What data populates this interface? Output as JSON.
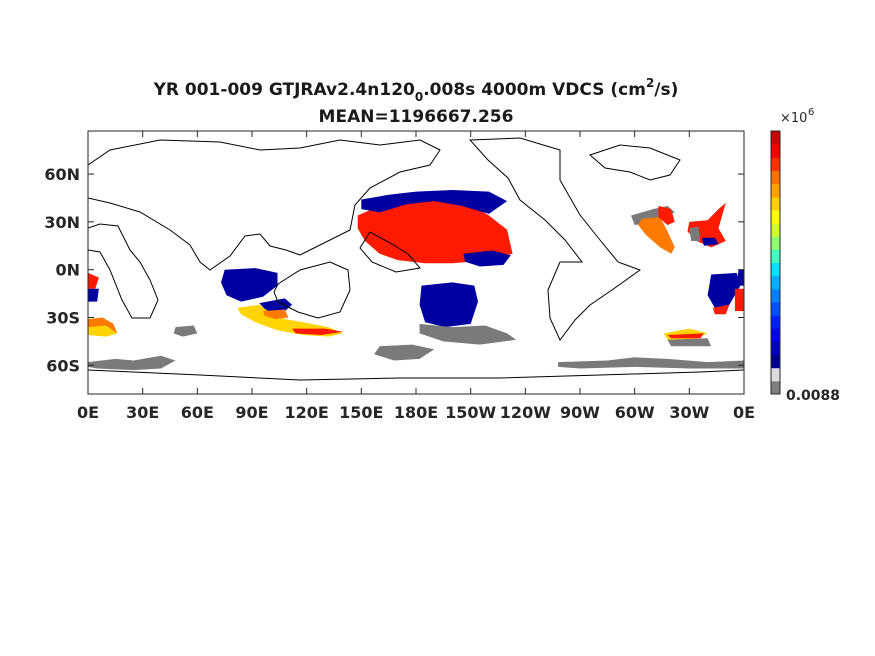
{
  "title": {
    "pre": "YR 001-009 GTJRAv2.4n120",
    "sub": "0",
    "mid": ".008s 4000m VDCS (cm",
    "sup": "2",
    "post": "/s)",
    "mean": "MEAN=1196667.256"
  },
  "chart_data": {
    "type": "heatmap",
    "title": "YR 001-009 GTJRAv2.4n120_0.008s 4000m VDCS (cm^2/s)",
    "subtitle": "MEAN=1196667.256",
    "xlabel": "",
    "ylabel": "",
    "x_ticks": [
      "0E",
      "30E",
      "60E",
      "90E",
      "120E",
      "150E",
      "180E",
      "150W",
      "120W",
      "90W",
      "60W",
      "30W",
      "0E"
    ],
    "x_tick_values": [
      0,
      30,
      60,
      90,
      120,
      150,
      180,
      210,
      240,
      270,
      300,
      330,
      360
    ],
    "y_ticks": [
      "60N",
      "30N",
      "0N",
      "30S",
      "60S"
    ],
    "y_tick_values": [
      60,
      30,
      0,
      -30,
      -60
    ],
    "xlim": [
      0,
      360
    ],
    "ylim": [
      -78,
      87
    ],
    "colorbar": {
      "multiplier_base": "×10",
      "multiplier_exp": "6",
      "bottom_label": "0.0088",
      "colors": [
        "#808080",
        "#dcdcdc",
        "#00008f",
        "#0000bf",
        "#0000ef",
        "#0020ff",
        "#0050ff",
        "#0080ff",
        "#00b0ff",
        "#00e0ff",
        "#40ffc0",
        "#90ff70",
        "#d0ff30",
        "#ffff00",
        "#ffd000",
        "#ffa000",
        "#ff7000",
        "#ff3000",
        "#ff0000",
        "#cc0000"
      ]
    },
    "regions": [
      {
        "name": "North Pacific high",
        "color": "#ff1a00",
        "points": [
          [
            148,
            34
          ],
          [
            160,
            40
          ],
          [
            175,
            46
          ],
          [
            190,
            47
          ],
          [
            205,
            44
          ],
          [
            220,
            34
          ],
          [
            230,
            25
          ],
          [
            233,
            10
          ],
          [
            220,
            6
          ],
          [
            200,
            4
          ],
          [
            185,
            4
          ],
          [
            170,
            6
          ],
          [
            160,
            10
          ],
          [
            152,
            18
          ],
          [
            148,
            26
          ]
        ]
      },
      {
        "name": "North Pacific low band",
        "color": "#0000a0",
        "points": [
          [
            150,
            44
          ],
          [
            165,
            47
          ],
          [
            180,
            49
          ],
          [
            200,
            50
          ],
          [
            220,
            49
          ],
          [
            230,
            43
          ],
          [
            220,
            35
          ],
          [
            205,
            40
          ],
          [
            190,
            43
          ],
          [
            175,
            41
          ],
          [
            160,
            36
          ],
          [
            150,
            38
          ]
        ]
      },
      {
        "name": "Central Pacific low",
        "color": "#0000a0",
        "points": [
          [
            206,
            10
          ],
          [
            222,
            12
          ],
          [
            232,
            9
          ],
          [
            228,
            3
          ],
          [
            215,
            2
          ],
          [
            207,
            5
          ]
        ]
      },
      {
        "name": "South Pacific low",
        "color": "#0000a0",
        "points": [
          [
            183,
            -10
          ],
          [
            200,
            -8
          ],
          [
            212,
            -10
          ],
          [
            214,
            -20
          ],
          [
            210,
            -34
          ],
          [
            196,
            -36
          ],
          [
            185,
            -33
          ],
          [
            182,
            -22
          ]
        ]
      },
      {
        "name": "South Pacific gray",
        "color": "#7a7a7a",
        "points": [
          [
            182,
            -34
          ],
          [
            200,
            -36
          ],
          [
            218,
            -35
          ],
          [
            230,
            -40
          ],
          [
            235,
            -44
          ],
          [
            215,
            -47
          ],
          [
            195,
            -45
          ],
          [
            182,
            -40
          ]
        ]
      },
      {
        "name": "South Pacific gray 2",
        "color": "#7a7a7a",
        "points": [
          [
            160,
            -48
          ],
          [
            178,
            -47
          ],
          [
            190,
            -50
          ],
          [
            182,
            -56
          ],
          [
            168,
            -57
          ],
          [
            157,
            -53
          ]
        ]
      },
      {
        "name": "Southern Ocean gray west",
        "color": "#7a7a7a",
        "points": [
          [
            0,
            -58
          ],
          [
            15,
            -56
          ],
          [
            25,
            -57
          ],
          [
            40,
            -54
          ],
          [
            48,
            -57
          ],
          [
            40,
            -62
          ],
          [
            25,
            -63
          ],
          [
            5,
            -62
          ],
          [
            0,
            -61
          ]
        ]
      },
      {
        "name": "Southern Ocean gray east",
        "color": "#7a7a7a",
        "points": [
          [
            258,
            -58
          ],
          [
            285,
            -57
          ],
          [
            300,
            -55
          ],
          [
            318,
            -56
          ],
          [
            340,
            -58
          ],
          [
            360,
            -57
          ],
          [
            360,
            -62
          ],
          [
            330,
            -62
          ],
          [
            300,
            -61
          ],
          [
            270,
            -62
          ],
          [
            258,
            -61
          ]
        ]
      },
      {
        "name": "Indian Ocean low",
        "color": "#0000a0",
        "points": [
          [
            75,
            0
          ],
          [
            92,
            1
          ],
          [
            104,
            -2
          ],
          [
            104,
            -10
          ],
          [
            96,
            -17
          ],
          [
            84,
            -20
          ],
          [
            76,
            -16
          ],
          [
            73,
            -8
          ]
        ]
      },
      {
        "name": "Indian Ocean low 2",
        "color": "#0000a0",
        "points": [
          [
            94,
            -21
          ],
          [
            108,
            -18
          ],
          [
            112,
            -22
          ],
          [
            108,
            -26
          ],
          [
            98,
            -26
          ]
        ]
      },
      {
        "name": "Australia south yellow",
        "color": "#ffd400",
        "points": [
          [
            82,
            -24
          ],
          [
            94,
            -22
          ],
          [
            100,
            -27
          ],
          [
            108,
            -31
          ],
          [
            118,
            -33
          ],
          [
            132,
            -36
          ],
          [
            140,
            -40
          ],
          [
            132,
            -42
          ],
          [
            118,
            -41
          ],
          [
            104,
            -38
          ],
          [
            92,
            -33
          ],
          [
            84,
            -28
          ]
        ]
      },
      {
        "name": "Australia south orange",
        "color": "#ff7a00",
        "points": [
          [
            96,
            -26
          ],
          [
            108,
            -25
          ],
          [
            110,
            -30
          ],
          [
            103,
            -31
          ],
          [
            97,
            -29
          ]
        ]
      },
      {
        "name": "Australia south red",
        "color": "#ff1a00",
        "points": [
          [
            112,
            -37
          ],
          [
            130,
            -37
          ],
          [
            140,
            -39
          ],
          [
            128,
            -41
          ],
          [
            114,
            -40
          ]
        ]
      },
      {
        "name": "West Africa orange",
        "color": "#ff7a00",
        "points": [
          [
            0,
            -31
          ],
          [
            8,
            -30
          ],
          [
            14,
            -34
          ],
          [
            16,
            -40
          ],
          [
            8,
            -40
          ],
          [
            0,
            -38
          ]
        ]
      },
      {
        "name": "West Africa yellow",
        "color": "#ffd400",
        "points": [
          [
            0,
            -36
          ],
          [
            10,
            -35
          ],
          [
            16,
            -40
          ],
          [
            10,
            -42
          ],
          [
            0,
            -41
          ]
        ]
      },
      {
        "name": "West Africa red",
        "color": "#ff1a00",
        "points": [
          [
            0,
            -2
          ],
          [
            6,
            -5
          ],
          [
            4,
            -12
          ],
          [
            0,
            -12
          ]
        ]
      },
      {
        "name": "West Africa low",
        "color": "#0000a0",
        "points": [
          [
            0,
            -12
          ],
          [
            6,
            -12
          ],
          [
            5,
            -20
          ],
          [
            0,
            -20
          ]
        ]
      },
      {
        "name": "Indian Ocean gray",
        "color": "#7a7a7a",
        "points": [
          [
            48,
            -36
          ],
          [
            58,
            -35
          ],
          [
            60,
            -40
          ],
          [
            52,
            -42
          ],
          [
            47,
            -40
          ]
        ]
      },
      {
        "name": "Atlantic NW gray",
        "color": "#7a7a7a",
        "points": [
          [
            298,
            34
          ],
          [
            310,
            38
          ],
          [
            318,
            40
          ],
          [
            322,
            36
          ],
          [
            312,
            30
          ],
          [
            300,
            28
          ]
        ]
      },
      {
        "name": "Atlantic NW orange",
        "color": "#ff7a00",
        "points": [
          [
            304,
            32
          ],
          [
            314,
            33
          ],
          [
            318,
            24
          ],
          [
            322,
            14
          ],
          [
            320,
            10
          ],
          [
            314,
            14
          ],
          [
            306,
            22
          ],
          [
            302,
            28
          ]
        ]
      },
      {
        "name": "Atlantic NW red",
        "color": "#ff1a00",
        "points": [
          [
            313,
            40
          ],
          [
            320,
            38
          ],
          [
            322,
            30
          ],
          [
            318,
            28
          ],
          [
            313,
            33
          ]
        ]
      },
      {
        "name": "Atlantic NE red",
        "color": "#ff1a00",
        "points": [
          [
            330,
            30
          ],
          [
            340,
            31
          ],
          [
            346,
            38
          ],
          [
            350,
            42
          ],
          [
            346,
            26
          ],
          [
            350,
            18
          ],
          [
            342,
            14
          ],
          [
            334,
            18
          ],
          [
            329,
            24
          ]
        ]
      },
      {
        "name": "Atlantic NE gray",
        "color": "#7a7a7a",
        "points": [
          [
            330,
            26
          ],
          [
            335,
            27
          ],
          [
            336,
            18
          ],
          [
            331,
            18
          ]
        ]
      },
      {
        "name": "Atlantic NE low",
        "color": "#0000a0",
        "points": [
          [
            337,
            20
          ],
          [
            344,
            20
          ],
          [
            346,
            16
          ],
          [
            338,
            15
          ]
        ]
      },
      {
        "name": "Atlantic south yellow",
        "color": "#ffd400",
        "points": [
          [
            316,
            -40
          ],
          [
            330,
            -37
          ],
          [
            340,
            -40
          ],
          [
            332,
            -44
          ],
          [
            318,
            -44
          ]
        ]
      },
      {
        "name": "Atlantic south red",
        "color": "#ff1a00",
        "points": [
          [
            318,
            -41
          ],
          [
            338,
            -40
          ],
          [
            336,
            -43
          ],
          [
            320,
            -43
          ]
        ]
      },
      {
        "name": "Atlantic south gray",
        "color": "#7a7a7a",
        "points": [
          [
            318,
            -44
          ],
          [
            340,
            -43
          ],
          [
            342,
            -48
          ],
          [
            320,
            -48
          ]
        ]
      },
      {
        "name": "Atlantic tropical low",
        "color": "#0000a0",
        "points": [
          [
            342,
            -3
          ],
          [
            356,
            -2
          ],
          [
            358,
            -10
          ],
          [
            352,
            -22
          ],
          [
            344,
            -24
          ],
          [
            340,
            -16
          ]
        ]
      },
      {
        "name": "Atlantic tropical red",
        "color": "#ff1a00",
        "points": [
          [
            343,
            -24
          ],
          [
            352,
            -22
          ],
          [
            350,
            -28
          ],
          [
            344,
            -28
          ]
        ]
      },
      {
        "name": "Atlantic east red",
        "color": "#ff1a00",
        "points": [
          [
            355,
            -12
          ],
          [
            360,
            -12
          ],
          [
            360,
            -26
          ],
          [
            355,
            -26
          ]
        ]
      },
      {
        "name": "Atlantic east low",
        "color": "#0000a0",
        "points": [
          [
            357,
            0
          ],
          [
            360,
            0
          ],
          [
            360,
            -10
          ],
          [
            356,
            -10
          ]
        ]
      }
    ],
    "grid": false,
    "legend": "colorbar right"
  }
}
